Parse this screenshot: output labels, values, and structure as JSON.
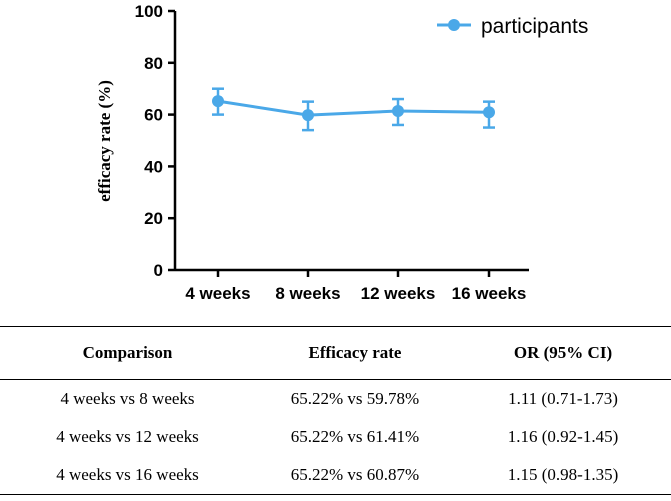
{
  "chart_data": {
    "type": "line",
    "title": "",
    "xlabel": "",
    "ylabel": "efficacy rate (%)",
    "ylim": [
      0,
      100
    ],
    "yticks": [
      "0",
      "20",
      "40",
      "60",
      "80",
      "100"
    ],
    "categories": [
      "4 weeks",
      "8 weeks",
      "12 weeks",
      "16 weeks"
    ],
    "series": [
      {
        "name": "participants",
        "color": "#4aa8e8",
        "values": [
          65.2,
          59.8,
          61.4,
          60.9
        ],
        "err_low": [
          60,
          54,
          56,
          55
        ],
        "err_high": [
          70,
          65,
          66,
          65
        ]
      }
    ],
    "legend_position": "top-right"
  },
  "table": {
    "headers": [
      "Comparison",
      "Efficacy rate",
      "OR (95% CI)"
    ],
    "rows": [
      [
        "4 weeks vs 8 weeks",
        "65.22% vs 59.78%",
        "1.11 (0.71-1.73)"
      ],
      [
        "4 weeks vs 12 weeks",
        "65.22% vs 61.41%",
        "1.16 (0.92-1.45)"
      ],
      [
        "4 weeks vs 16 weeks",
        "65.22% vs 60.87%",
        "1.15 (0.98-1.35)"
      ]
    ]
  }
}
